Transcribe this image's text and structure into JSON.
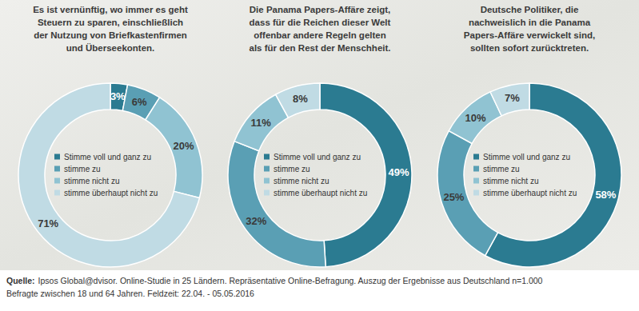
{
  "chart_data": [
    {
      "type": "pie",
      "title": [
        "Es ist vernünftig, wo immer es geht",
        "Steuern zu sparen, einschließlich",
        "der Nutzung von Briefkastenfirmen",
        "und Überseekonten."
      ],
      "categories": [
        "Stimme voll und ganz zu",
        "stimme zu",
        "stimme nicht zu",
        "stimme überhaupt nicht zu"
      ],
      "values": [
        3,
        6,
        20,
        71
      ],
      "value_labels": [
        "3%",
        "6%",
        "20%",
        "71%"
      ],
      "colors": [
        "#2b7b91",
        "#5a9fb4",
        "#90c3d2",
        "#c0dbe4"
      ],
      "data_labels": true,
      "legend": "center"
    },
    {
      "type": "pie",
      "title": [
        "Die Panama Papers-Affäre zeigt,",
        "dass für die Reichen dieser Welt",
        "offenbar andere Regeln gelten",
        "als für den Rest der Menschheit."
      ],
      "categories": [
        "Stimme voll und ganz zu",
        "stimme zu",
        "stimme nicht zu",
        "stimme überhaupt nicht zu"
      ],
      "values": [
        49,
        32,
        11,
        8
      ],
      "value_labels": [
        "49%",
        "32%",
        "11%",
        "8%"
      ],
      "colors": [
        "#2b7b91",
        "#5a9fb4",
        "#90c3d2",
        "#c0dbe4"
      ],
      "data_labels": true,
      "legend": "center"
    },
    {
      "type": "pie",
      "title": [
        "Deutsche Politiker, die",
        "nachweislich in die Panama",
        "Papers-Affäre verwickelt sind,",
        "sollten sofort zurücktreten."
      ],
      "categories": [
        "Stimme voll und ganz zu",
        "stimme zu",
        "stimme nicht zu",
        "stimme überhaupt nicht zu"
      ],
      "values": [
        58,
        25,
        10,
        7
      ],
      "value_labels": [
        "58%",
        "25%",
        "10%",
        "7%"
      ],
      "colors": [
        "#2b7b91",
        "#5a9fb4",
        "#90c3d2",
        "#c0dbe4"
      ],
      "data_labels": true,
      "legend": "center"
    }
  ],
  "source": {
    "label": "Quelle:",
    "lines": [
      "Ipsos Global@dvisor. Online-Studie in 25 Ländern. Repräsentative Online-Befragung. Auszug der Ergebnisse aus Deutschland n=1.000",
      "Befragte zwischen 18 und 64 Jahren. Feldzeit: 22.04. - 05.05.2016"
    ]
  }
}
